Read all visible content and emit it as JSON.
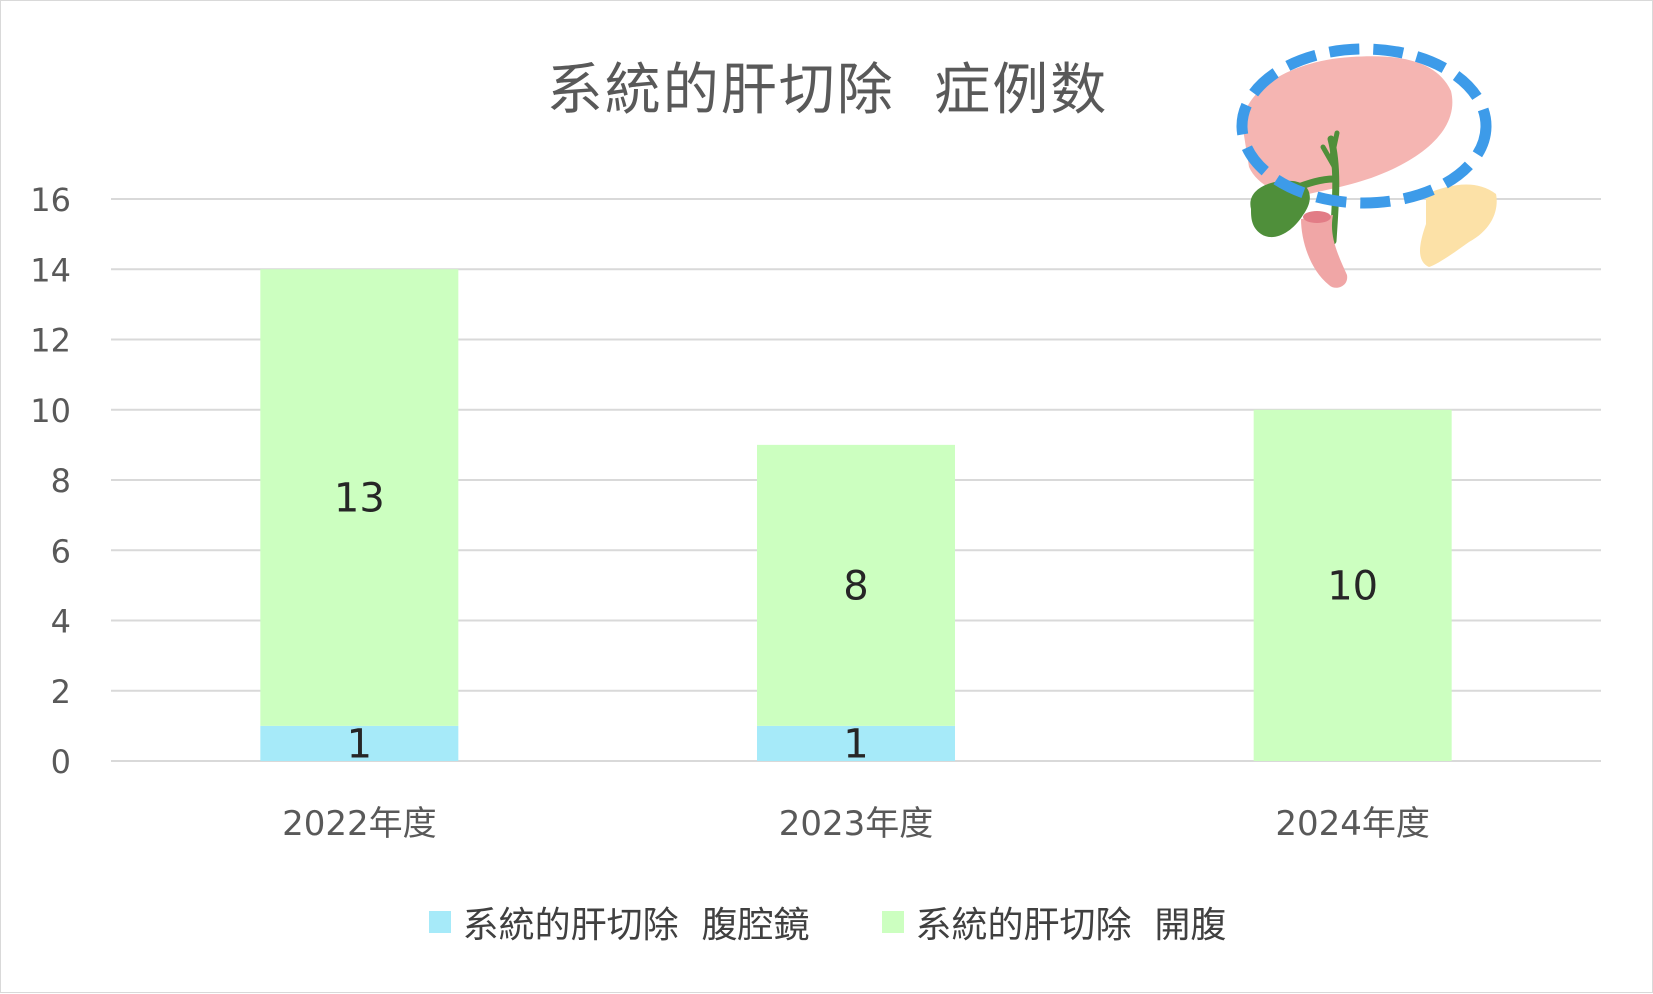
{
  "chart_data": {
    "type": "bar",
    "stacked": true,
    "title": "系統的肝切除  症例数",
    "categories": [
      "2022年度",
      "2023年度",
      "2024年度"
    ],
    "series": [
      {
        "name": "系統的肝切除  腹腔鏡",
        "values": [
          1,
          1,
          0
        ],
        "labels": [
          "1",
          "1",
          ""
        ],
        "color": "#a6eaf9"
      },
      {
        "name": "系統的肝切除  開腹",
        "values": [
          13,
          8,
          10
        ],
        "labels": [
          "13",
          "8",
          "10"
        ],
        "color": "#ccffc0"
      }
    ],
    "ylim": [
      0,
      16
    ],
    "yticks": [
      "0",
      "2",
      "4",
      "6",
      "8",
      "10",
      "12",
      "14",
      "16"
    ],
    "grid": true,
    "legend_position": "bottom",
    "gridline_color": "#d9d9d9",
    "text_color": "#595959",
    "illustration": "liver-gallbladder-pancreas-icon",
    "highlight_color": "#3d9be9"
  }
}
